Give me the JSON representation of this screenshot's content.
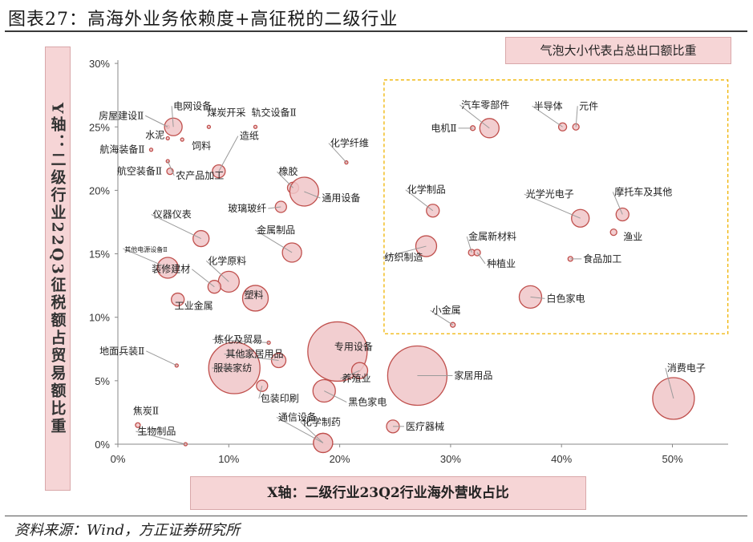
{
  "page": {
    "title": "图表27：高海外业务依赖度+高征税的二级行业",
    "bubble_note": "气泡大小代表占总出口额比重",
    "y_axis_label": "Y轴：二级行业22Q3征税额占贸易额比重",
    "x_axis_label": "X轴：二级行业23Q2行业海外营收占比",
    "source": "资料来源：Wind，方正证券研究所"
  },
  "colors": {
    "bubble_fill": "#f0c6c8",
    "bubble_stroke": "#c0504d",
    "highlight_box": "#f0b400",
    "axis": "#888888"
  },
  "chart_data": {
    "type": "scatter",
    "title": "高海外业务依赖度+高征税的二级行业",
    "xlabel": "X轴：二级行业23Q2行业海外营收占比",
    "ylabel": "Y轴：二级行业22Q3征税额占贸易额比重",
    "xlim": [
      0,
      0.55
    ],
    "ylim": [
      0,
      0.3
    ],
    "x_ticks": [
      "0%",
      "10%",
      "20%",
      "30%",
      "40%",
      "50%"
    ],
    "y_ticks": [
      "0%",
      "5%",
      "10%",
      "15%",
      "20%",
      "25%",
      "30%"
    ],
    "size_meaning": "气泡大小代表占总出口额比重",
    "highlight_region": {
      "x": [
        0.24,
        0.55
      ],
      "y": [
        0.087,
        0.287
      ]
    },
    "points": [
      {
        "name": "房屋建设Ⅱ",
        "x": 0.045,
        "y": 0.25,
        "size": 2
      },
      {
        "name": "电网设备",
        "x": 0.05,
        "y": 0.25,
        "size": 11
      },
      {
        "name": "煤炭开采",
        "x": 0.082,
        "y": 0.25,
        "size": 2
      },
      {
        "name": "轨交设备Ⅱ",
        "x": 0.124,
        "y": 0.25,
        "size": 2
      },
      {
        "name": "水泥",
        "x": 0.045,
        "y": 0.241,
        "size": 1
      },
      {
        "name": "饲料",
        "x": 0.058,
        "y": 0.24,
        "size": 1
      },
      {
        "name": "航海装备Ⅱ",
        "x": 0.03,
        "y": 0.232,
        "size": 2
      },
      {
        "name": "航空装备Ⅱ",
        "x": 0.047,
        "y": 0.215,
        "size": 4
      },
      {
        "name": "造纸",
        "x": 0.091,
        "y": 0.215,
        "size": 8
      },
      {
        "name": "农产品加工",
        "x": 0.045,
        "y": 0.223,
        "size": 1
      },
      {
        "name": "化学纤维",
        "x": 0.206,
        "y": 0.222,
        "size": 2
      },
      {
        "name": "橡胶",
        "x": 0.158,
        "y": 0.202,
        "size": 7
      },
      {
        "name": "通用设备",
        "x": 0.168,
        "y": 0.199,
        "size": 18
      },
      {
        "name": "玻璃玻纤",
        "x": 0.147,
        "y": 0.187,
        "size": 7
      },
      {
        "name": "仪器仪表",
        "x": 0.075,
        "y": 0.162,
        "size": 10
      },
      {
        "name": "金属制品",
        "x": 0.157,
        "y": 0.151,
        "size": 12
      },
      {
        "name": "其他电源设备Ⅱ",
        "x": 0.045,
        "y": 0.139,
        "size": 13
      },
      {
        "name": "化学原料",
        "x": 0.1,
        "y": 0.128,
        "size": 13
      },
      {
        "name": "装修建材",
        "x": 0.087,
        "y": 0.124,
        "size": 8
      },
      {
        "name": "工业金属",
        "x": 0.054,
        "y": 0.114,
        "size": 8
      },
      {
        "name": "塑料",
        "x": 0.124,
        "y": 0.115,
        "size": 16
      },
      {
        "name": "汽车零部件",
        "x": 0.335,
        "y": 0.249,
        "size": 12
      },
      {
        "name": "电机Ⅱ",
        "x": 0.32,
        "y": 0.249,
        "size": 3
      },
      {
        "name": "半导体",
        "x": 0.401,
        "y": 0.25,
        "size": 5
      },
      {
        "name": "元件",
        "x": 0.413,
        "y": 0.25,
        "size": 4
      },
      {
        "name": "化学制品",
        "x": 0.284,
        "y": 0.184,
        "size": 8
      },
      {
        "name": "光学光电子",
        "x": 0.417,
        "y": 0.178,
        "size": 11
      },
      {
        "name": "摩托车及其他",
        "x": 0.455,
        "y": 0.181,
        "size": 8
      },
      {
        "name": "渔业",
        "x": 0.447,
        "y": 0.167,
        "size": 4
      },
      {
        "name": "金属新材料",
        "x": 0.319,
        "y": 0.151,
        "size": 4
      },
      {
        "name": "纺织制造",
        "x": 0.278,
        "y": 0.156,
        "size": 13
      },
      {
        "name": "种植业",
        "x": 0.324,
        "y": 0.151,
        "size": 4
      },
      {
        "name": "食品加工",
        "x": 0.408,
        "y": 0.146,
        "size": 3
      },
      {
        "name": "白色家电",
        "x": 0.372,
        "y": 0.116,
        "size": 14
      },
      {
        "name": "小金属",
        "x": 0.302,
        "y": 0.094,
        "size": 3
      },
      {
        "name": "炼化及贸易",
        "x": 0.136,
        "y": 0.08,
        "size": 2
      },
      {
        "name": "其他家居用品",
        "x": 0.145,
        "y": 0.066,
        "size": 9
      },
      {
        "name": "专用设备",
        "x": 0.198,
        "y": 0.073,
        "size": 37
      },
      {
        "name": "养殖业",
        "x": 0.218,
        "y": 0.058,
        "size": 10
      },
      {
        "name": "地面兵装Ⅱ",
        "x": 0.053,
        "y": 0.062,
        "size": 2
      },
      {
        "name": "服装家纺",
        "x": 0.105,
        "y": 0.06,
        "size": 32
      },
      {
        "name": "家居用品",
        "x": 0.27,
        "y": 0.054,
        "size": 37
      },
      {
        "name": "黑色家电",
        "x": 0.186,
        "y": 0.042,
        "size": 14
      },
      {
        "name": "包装印刷",
        "x": 0.13,
        "y": 0.046,
        "size": 7
      },
      {
        "name": "消费电子",
        "x": 0.501,
        "y": 0.036,
        "size": 26
      },
      {
        "name": "通信设备",
        "x": 0.185,
        "y": 0.001,
        "size": 12
      },
      {
        "name": "化学制药",
        "x": 0.185,
        "y": 0.001,
        "size": 12
      },
      {
        "name": "医疗器械",
        "x": 0.248,
        "y": 0.014,
        "size": 8
      },
      {
        "name": "焦炭Ⅱ",
        "x": 0.018,
        "y": 0.015,
        "size": 3
      },
      {
        "name": "生物制品",
        "x": 0.061,
        "y": 0.0,
        "size": 2
      }
    ]
  }
}
